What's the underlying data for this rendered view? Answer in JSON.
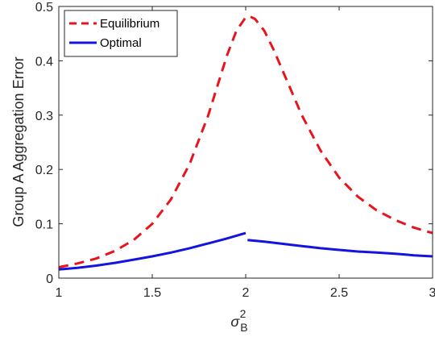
{
  "chart_data": {
    "type": "line",
    "ylabel": "Group A Aggregation Error",
    "xlabel": "σ_B^2",
    "xlabel_parts": {
      "symbol": "σ",
      "subscript": "B",
      "superscript": "2"
    },
    "xlim": [
      1,
      3
    ],
    "ylim": [
      0,
      0.5
    ],
    "xticks": [
      "1",
      "1.5",
      "2",
      "2.5",
      "3"
    ],
    "yticks": [
      "0",
      "0.1",
      "0.2",
      "0.3",
      "0.4",
      "0.5"
    ],
    "grid": false,
    "legend_position": "top-left",
    "series": [
      {
        "name": "Equilibrium",
        "style": "dashed",
        "color": "#e8141b",
        "segments": [
          {
            "x": [
              1.0,
              1.1,
              1.2,
              1.3,
              1.4,
              1.5,
              1.6,
              1.7,
              1.8,
              1.85,
              1.9,
              1.95,
              2.0,
              2.02,
              2.05,
              2.1,
              2.15,
              2.2,
              2.3,
              2.4,
              2.5,
              2.6,
              2.7,
              2.8,
              2.9,
              3.0
            ],
            "y": [
              0.02,
              0.027,
              0.036,
              0.05,
              0.07,
              0.1,
              0.145,
              0.21,
              0.3,
              0.355,
              0.41,
              0.455,
              0.48,
              0.482,
              0.477,
              0.455,
              0.42,
              0.38,
              0.3,
              0.235,
              0.185,
              0.15,
              0.125,
              0.107,
              0.093,
              0.083
            ]
          }
        ]
      },
      {
        "name": "Optimal",
        "style": "solid",
        "color": "#1414e0",
        "segments": [
          {
            "x": [
              1.0,
              1.1,
              1.2,
              1.3,
              1.4,
              1.5,
              1.6,
              1.7,
              1.8,
              1.9,
              2.0
            ],
            "y": [
              0.016,
              0.019,
              0.023,
              0.028,
              0.034,
              0.04,
              0.047,
              0.055,
              0.064,
              0.073,
              0.083
            ]
          },
          {
            "x": [
              2.01,
              2.1,
              2.2,
              2.3,
              2.4,
              2.5,
              2.6,
              2.7,
              2.8,
              2.9,
              3.0
            ],
            "y": [
              0.07,
              0.067,
              0.063,
              0.059,
              0.055,
              0.052,
              0.049,
              0.047,
              0.045,
              0.042,
              0.04
            ]
          }
        ]
      }
    ]
  }
}
